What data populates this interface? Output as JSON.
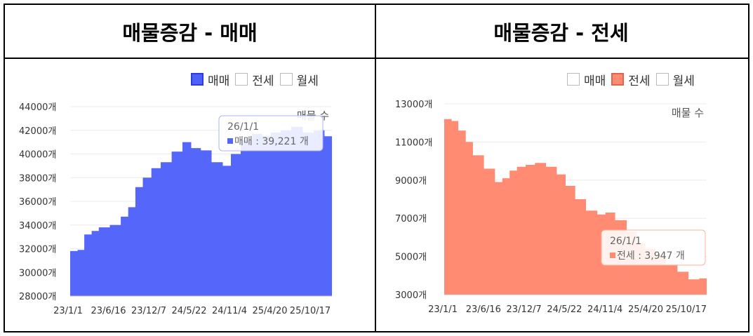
{
  "panels": [
    {
      "title": "매물증감 - 매매",
      "legend": [
        {
          "label": "매매",
          "checked": true,
          "color": "#4f60f7",
          "border": "#2b3be0"
        },
        {
          "label": "전세",
          "checked": false
        },
        {
          "label": "월세",
          "checked": false
        }
      ]
    },
    {
      "title": "매물증감 - 전세",
      "legend": [
        {
          "label": "매매",
          "checked": false
        },
        {
          "label": "전세",
          "checked": true,
          "color": "#ff8b72",
          "border": "#e06548"
        },
        {
          "label": "월세",
          "checked": false
        }
      ]
    }
  ],
  "chart_data": [
    {
      "type": "area",
      "series": [
        {
          "name": "매매",
          "color": "#5566fb"
        }
      ],
      "annotation": "매물 수",
      "ylim": [
        28000,
        44000
      ],
      "yticks": [
        "44000개",
        "42000개",
        "40000개",
        "38000개",
        "36000개",
        "34000개",
        "32000개",
        "30000개",
        "28000개"
      ],
      "xticks": [
        "23/1/1",
        "23/6/16",
        "23/12/7",
        "24/5/22",
        "24/11/4",
        "25/4/20",
        "25/10/17"
      ],
      "x": [
        "2023-01-01",
        "2023-02-01",
        "2023-03-01",
        "2023-04-01",
        "2023-05-01",
        "2023-06-16",
        "2023-08-01",
        "2023-09-01",
        "2023-10-01",
        "2023-11-01",
        "2023-12-07",
        "2024-01-15",
        "2024-03-01",
        "2024-04-15",
        "2024-05-22",
        "2024-07-01",
        "2024-08-15",
        "2024-10-01",
        "2024-11-04",
        "2024-12-15",
        "2025-02-01",
        "2025-03-15",
        "2025-04-20",
        "2025-06-01",
        "2025-07-15",
        "2025-09-01",
        "2025-10-17",
        "2025-12-01",
        "2026-01-01"
      ],
      "values": [
        31800,
        31900,
        33200,
        33500,
        33800,
        34000,
        34700,
        35500,
        37200,
        38000,
        38800,
        39300,
        40200,
        41000,
        40500,
        40300,
        39300,
        39000,
        40000,
        41200,
        41700,
        41500,
        41800,
        42000,
        42300,
        41800,
        42000,
        41500,
        39221
      ],
      "tooltip": {
        "date": "26/1/1",
        "series": "매매",
        "value": "39,221",
        "unit": "개"
      }
    },
    {
      "type": "area",
      "series": [
        {
          "name": "전세",
          "color": "#ff8c72"
        }
      ],
      "annotation": "매물 수",
      "ylim": [
        3000,
        13000
      ],
      "yticks": [
        "13000개",
        "11000개",
        "9000개",
        "7000개",
        "5000개",
        "3000개"
      ],
      "xticks": [
        "23/1/1",
        "23/6/16",
        "23/12/7",
        "24/5/22",
        "24/11/4",
        "25/4/20",
        "25/10/17"
      ],
      "x": [
        "2023-01-01",
        "2023-02-01",
        "2023-03-01",
        "2023-04-01",
        "2023-05-01",
        "2023-06-16",
        "2023-08-01",
        "2023-09-01",
        "2023-10-01",
        "2023-11-01",
        "2023-12-07",
        "2024-01-15",
        "2024-03-01",
        "2024-04-15",
        "2024-05-22",
        "2024-07-01",
        "2024-08-15",
        "2024-10-01",
        "2024-11-04",
        "2024-12-15",
        "2025-02-01",
        "2025-03-15",
        "2025-04-20",
        "2025-06-01",
        "2025-07-15",
        "2025-09-01",
        "2025-10-17",
        "2025-12-01",
        "2026-01-01"
      ],
      "values": [
        12200,
        12100,
        11600,
        11000,
        10300,
        9600,
        8900,
        9100,
        9500,
        9700,
        9800,
        9900,
        9700,
        9300,
        8700,
        8000,
        7400,
        7200,
        7300,
        6900,
        6300,
        5700,
        5400,
        5000,
        4600,
        4200,
        3800,
        3850,
        3947
      ],
      "tooltip": {
        "date": "26/1/1",
        "series": "전세",
        "value": "3,947",
        "unit": "개"
      }
    }
  ]
}
